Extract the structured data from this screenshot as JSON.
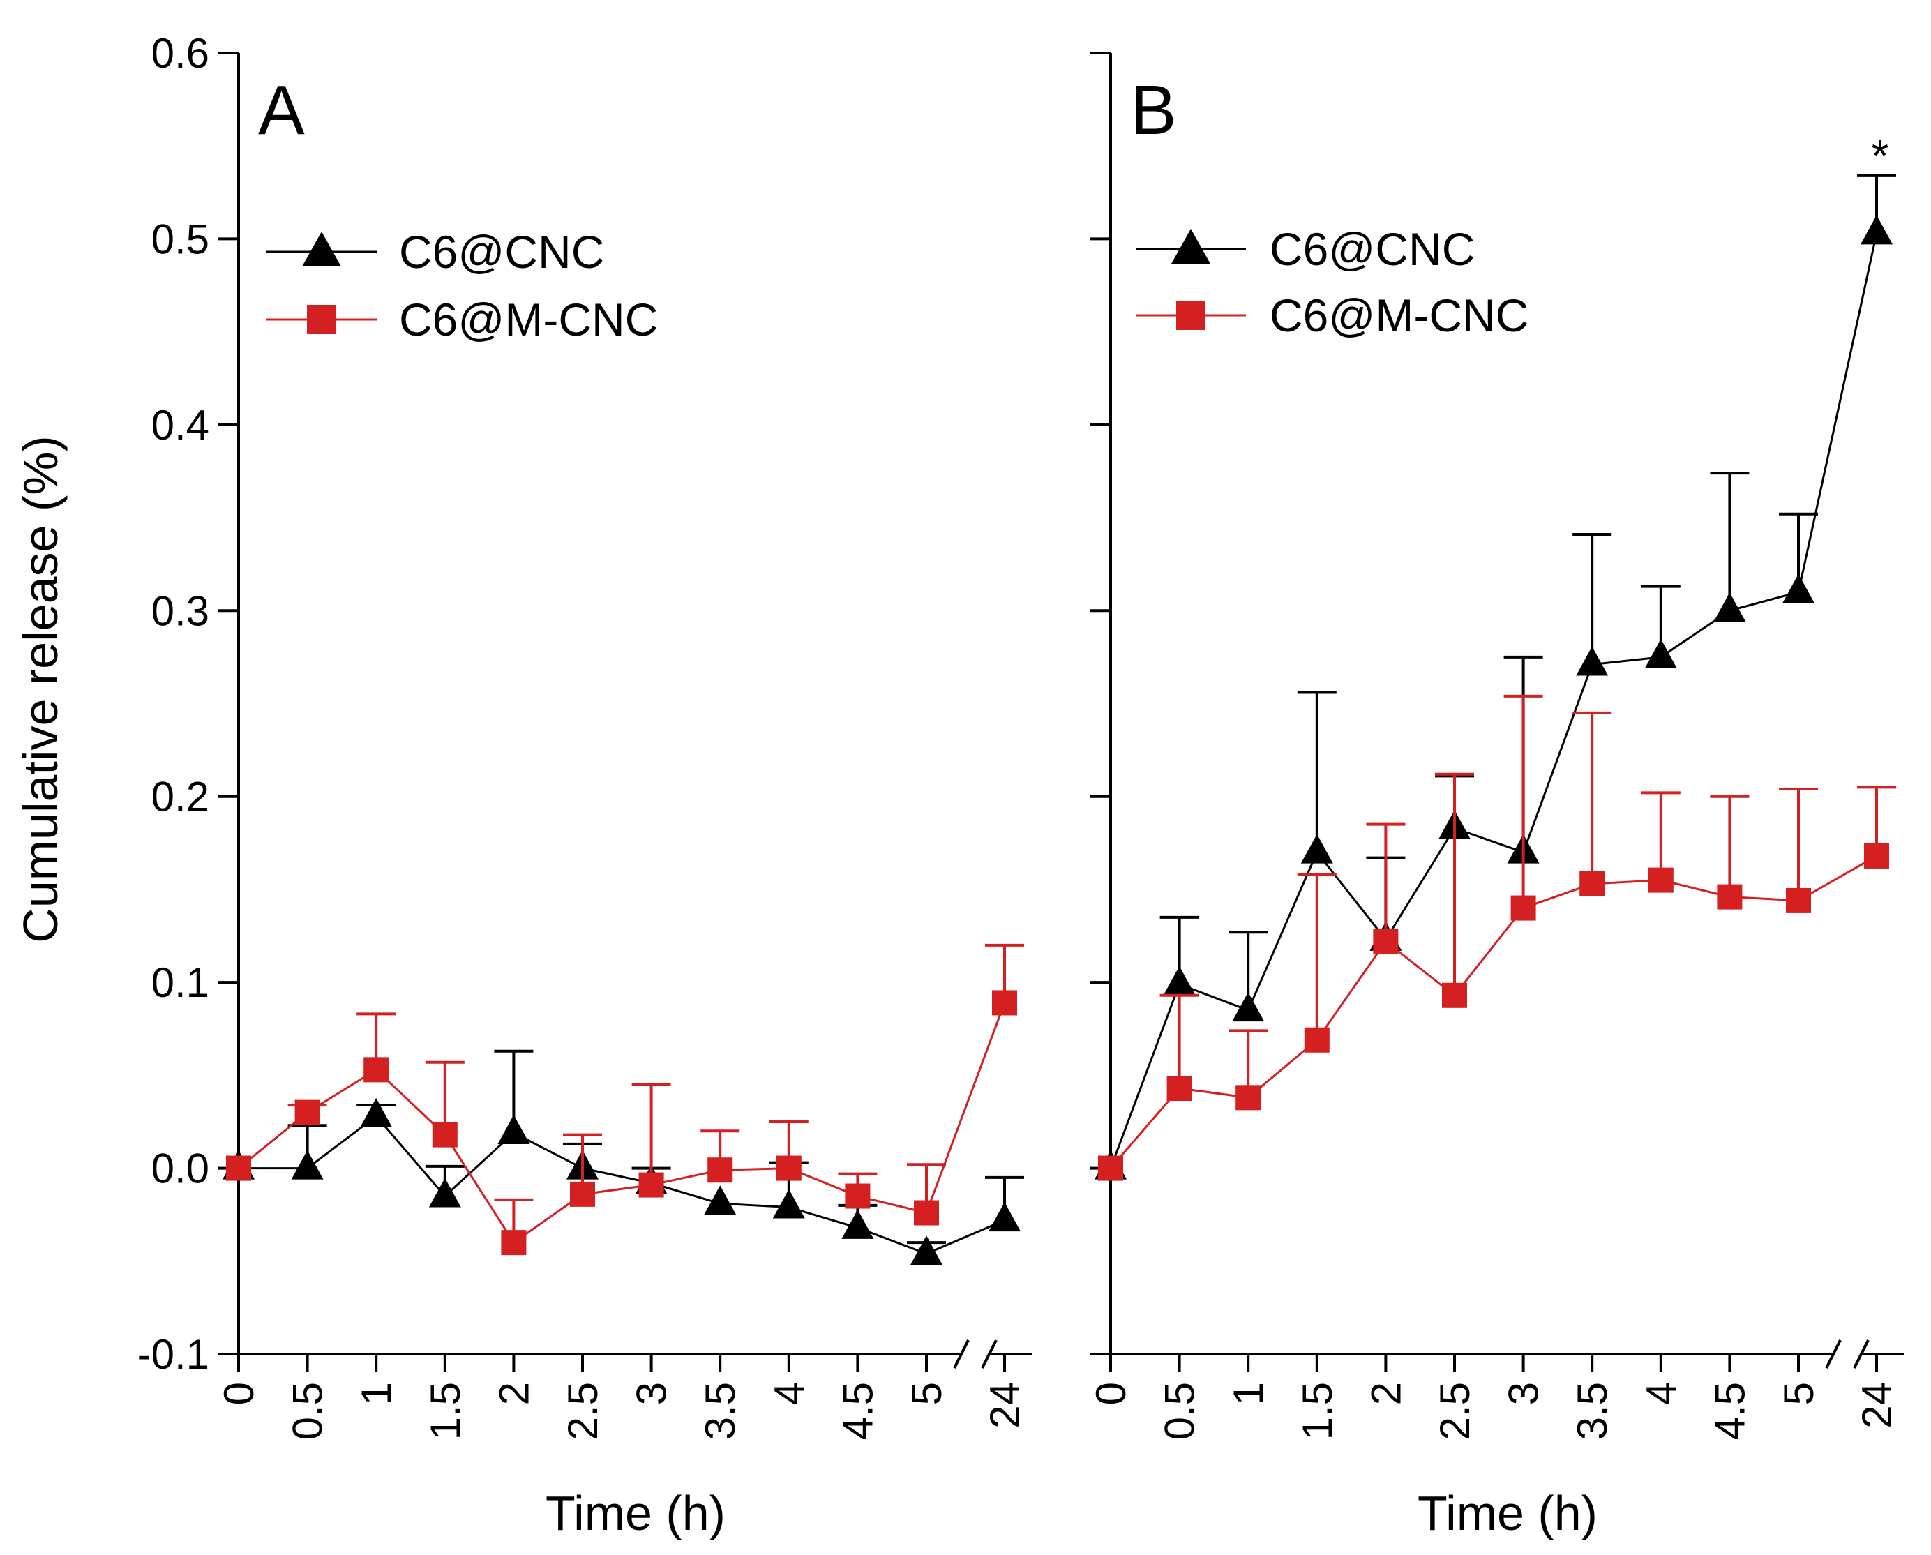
{
  "colors": {
    "black_series": "#000000",
    "red_series": "#d42020"
  },
  "legend": {
    "series_1": "C6@CNC",
    "series_2": "C6@M-CNC"
  },
  "y_axis": {
    "label": "Cumulative release (%)",
    "ticks": [
      "-0.1",
      "0.0",
      "0.1",
      "0.2",
      "0.3",
      "0.4",
      "0.5",
      "0.6"
    ]
  },
  "x_axis": {
    "label": "Time (h)",
    "ticks": [
      "0",
      "0.5",
      "1",
      "1.5",
      "2",
      "2.5",
      "3",
      "3.5",
      "4",
      "4.5",
      "5",
      "24"
    ]
  },
  "chart_data": [
    {
      "type": "line",
      "panel": "A",
      "title": "A",
      "xlabel": "Time (h)",
      "ylabel": "Cumulative release (%)",
      "ylim": [
        -0.1,
        0.6
      ],
      "x_axis_break": "between 5 and 24",
      "categories": [
        "0",
        "0.5",
        "1",
        "1.5",
        "2",
        "2.5",
        "3",
        "3.5",
        "4",
        "4.5",
        "5",
        "24"
      ],
      "series": [
        {
          "name": "C6@CNC",
          "marker": "triangle",
          "color": "#000000",
          "values": [
            0.0,
            0.0,
            0.028,
            -0.015,
            0.019,
            0.0,
            -0.008,
            -0.019,
            -0.021,
            -0.032,
            -0.046,
            -0.028
          ],
          "error_upper": [
            0.0,
            0.023,
            0.034,
            0.001,
            0.063,
            0.013,
            0.0,
            -0.019,
            0.003,
            -0.02,
            -0.04,
            -0.005
          ]
        },
        {
          "name": "C6@M-CNC",
          "marker": "square",
          "color": "#d42020",
          "values": [
            0.0,
            0.03,
            0.053,
            0.018,
            -0.04,
            -0.014,
            -0.009,
            -0.001,
            0.0,
            -0.015,
            -0.024,
            0.089
          ],
          "error_upper": [
            0.0,
            0.034,
            0.083,
            0.057,
            -0.017,
            0.018,
            0.045,
            0.02,
            0.025,
            -0.003,
            0.002,
            0.12
          ]
        }
      ]
    },
    {
      "type": "line",
      "panel": "B",
      "title": "B",
      "xlabel": "Time (h)",
      "ylabel": "Cumulative release (%)",
      "ylim": [
        -0.1,
        0.6
      ],
      "x_axis_break": "between 5 and 24",
      "categories": [
        "0",
        "0.5",
        "1",
        "1.5",
        "2",
        "2.5",
        "3",
        "3.5",
        "4",
        "4.5",
        "5",
        "24"
      ],
      "annotations": [
        {
          "text": "*",
          "series": "C6@CNC",
          "category": "24"
        }
      ],
      "series": [
        {
          "name": "C6@CNC",
          "marker": "triangle",
          "color": "#000000",
          "values": [
            0.0,
            0.099,
            0.085,
            0.17,
            0.123,
            0.183,
            0.17,
            0.271,
            0.275,
            0.3,
            0.31,
            0.503
          ],
          "error_upper": [
            0.0,
            0.135,
            0.127,
            0.256,
            0.167,
            0.211,
            0.275,
            0.341,
            0.313,
            0.374,
            0.352,
            0.534
          ]
        },
        {
          "name": "C6@M-CNC",
          "marker": "square",
          "color": "#d42020",
          "values": [
            0.0,
            0.043,
            0.038,
            0.069,
            0.122,
            0.093,
            0.14,
            0.153,
            0.155,
            0.146,
            0.144,
            0.168
          ],
          "error_upper": [
            0.0,
            0.093,
            0.074,
            0.158,
            0.185,
            0.212,
            0.254,
            0.245,
            0.202,
            0.2,
            0.204,
            0.205
          ]
        }
      ]
    }
  ]
}
